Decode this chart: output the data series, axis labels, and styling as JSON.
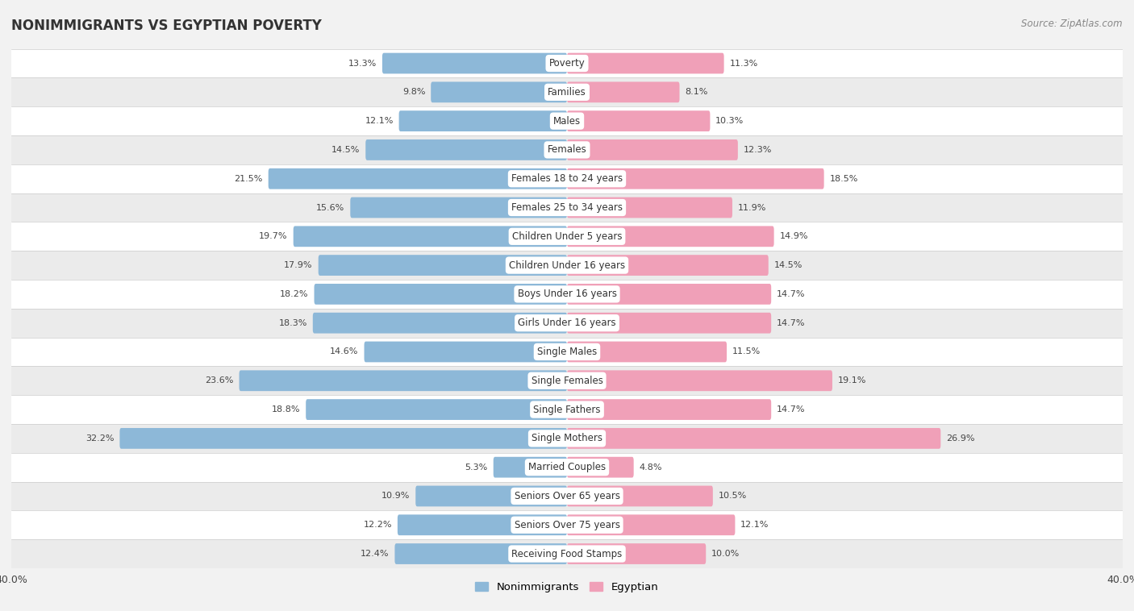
{
  "title": "NONIMMIGRANTS VS EGYPTIAN POVERTY",
  "source": "Source: ZipAtlas.com",
  "categories": [
    "Poverty",
    "Families",
    "Males",
    "Females",
    "Females 18 to 24 years",
    "Females 25 to 34 years",
    "Children Under 5 years",
    "Children Under 16 years",
    "Boys Under 16 years",
    "Girls Under 16 years",
    "Single Males",
    "Single Females",
    "Single Fathers",
    "Single Mothers",
    "Married Couples",
    "Seniors Over 65 years",
    "Seniors Over 75 years",
    "Receiving Food Stamps"
  ],
  "nonimmigrant_values": [
    13.3,
    9.8,
    12.1,
    14.5,
    21.5,
    15.6,
    19.7,
    17.9,
    18.2,
    18.3,
    14.6,
    23.6,
    18.8,
    32.2,
    5.3,
    10.9,
    12.2,
    12.4
  ],
  "egyptian_values": [
    11.3,
    8.1,
    10.3,
    12.3,
    18.5,
    11.9,
    14.9,
    14.5,
    14.7,
    14.7,
    11.5,
    19.1,
    14.7,
    26.9,
    4.8,
    10.5,
    12.1,
    10.0
  ],
  "nonimmigrant_color": "#8DB8D8",
  "egyptian_color": "#F0A0B8",
  "background_color": "#F2F2F2",
  "row_color_even": "#FFFFFF",
  "row_color_odd": "#EBEBEB",
  "xlim": 40.0,
  "bar_height": 0.72,
  "legend_nonimmigrant": "Nonimmigrants",
  "legend_egyptian": "Egyptian",
  "label_fontsize": 8.5,
  "value_fontsize": 8.0,
  "title_fontsize": 12,
  "source_fontsize": 8.5
}
